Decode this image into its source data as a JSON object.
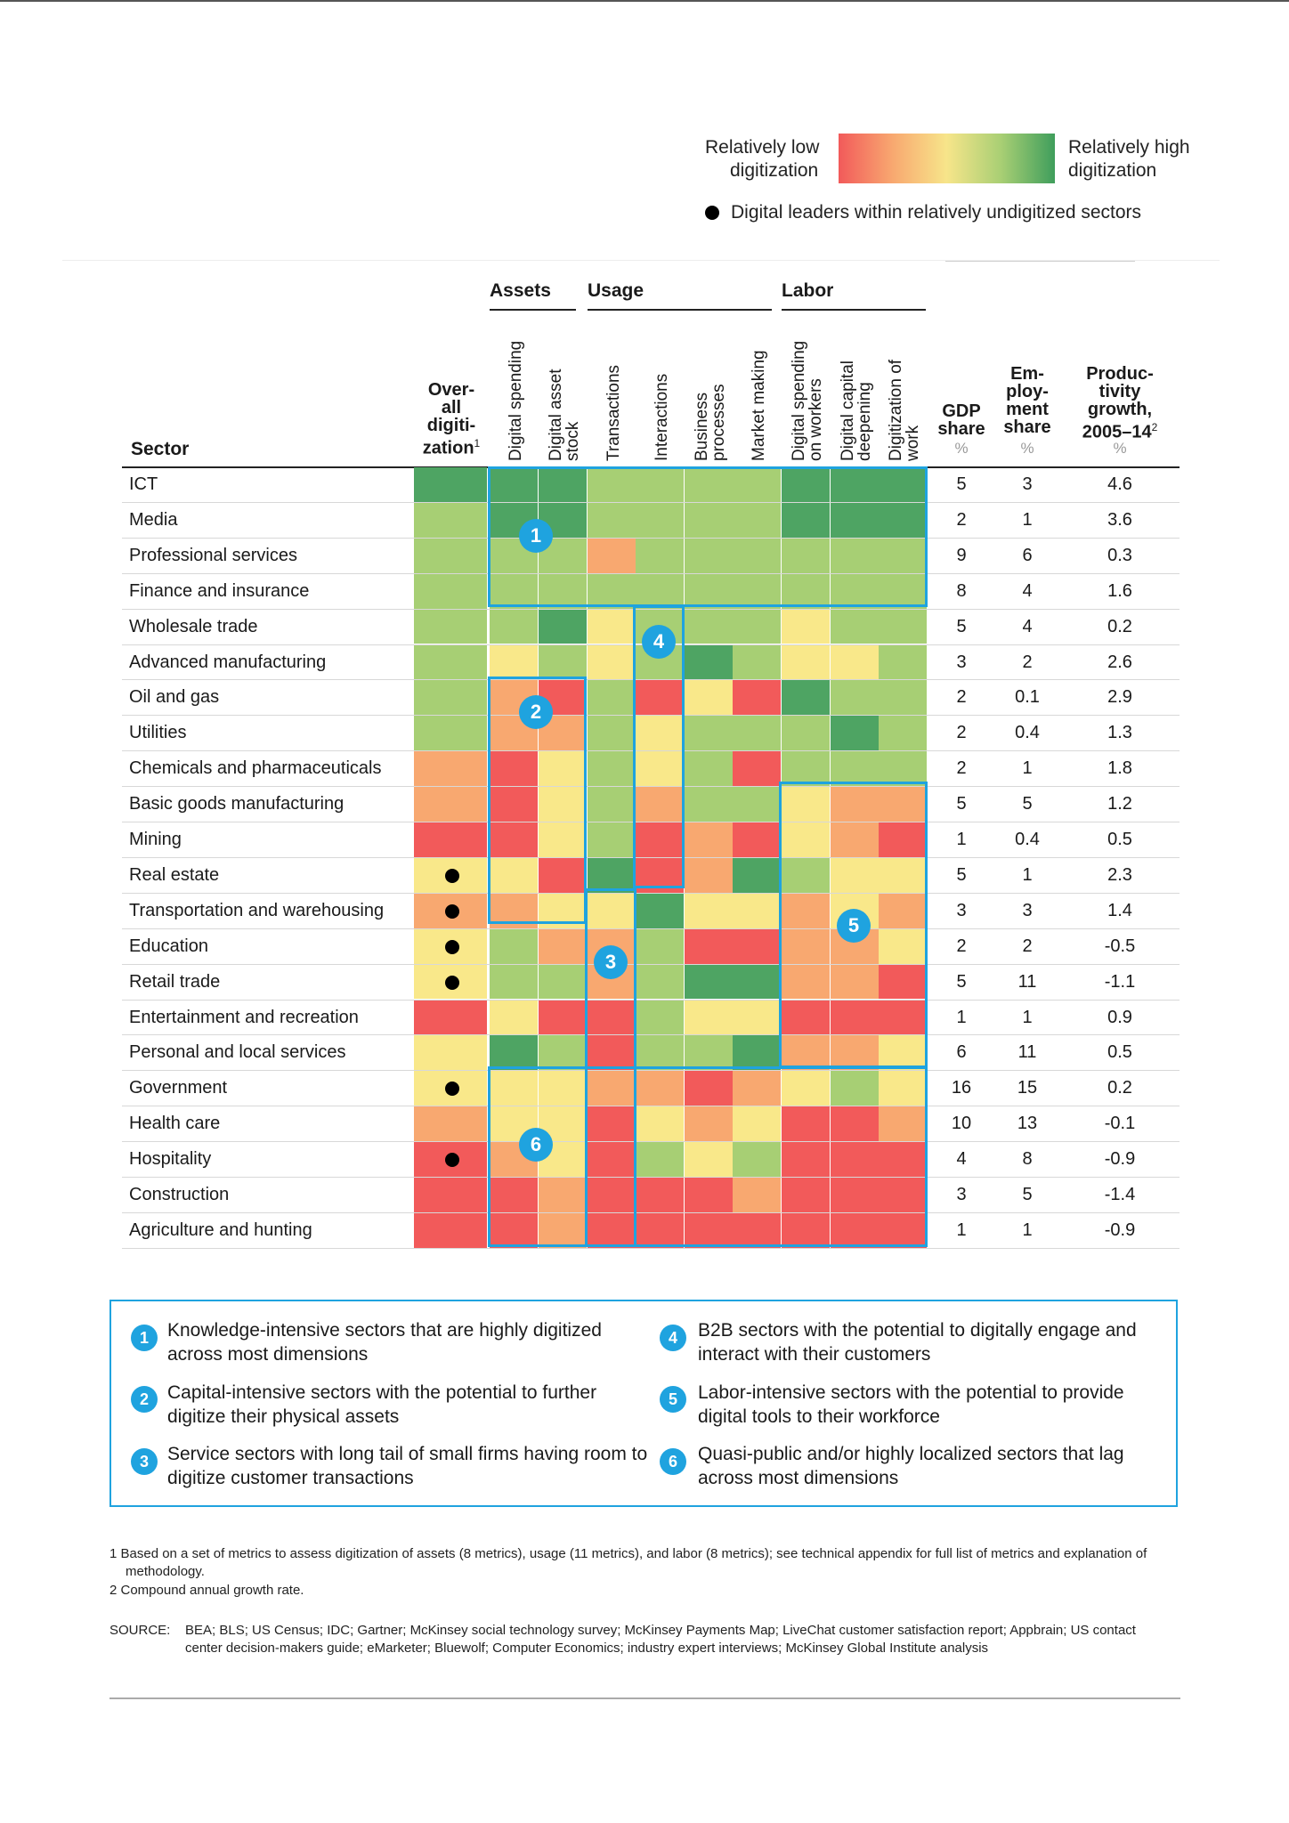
{
  "legend": {
    "low_label_1": "Relatively low",
    "low_label_2": "digitization",
    "high_label_1": "Relatively high",
    "high_label_2": "digitization",
    "dot_label": "Digital leaders within relatively undigitized sectors"
  },
  "headers": {
    "sector": "Sector",
    "overall": [
      "Over-",
      "all",
      "digiti-",
      "zation"
    ],
    "overall_sup": "1",
    "groups": [
      "Assets",
      "Usage",
      "Labor"
    ],
    "columns": [
      "Digital spending",
      "Digital asset\nstock",
      "Transactions",
      "Interactions",
      "Business\nprocesses",
      "Market making",
      "Digital spending\non workers",
      "Digital capital\ndeepening",
      "Digitization of\nwork"
    ],
    "gdp": [
      "GDP",
      "share"
    ],
    "emp": [
      "Em-",
      "ploy-",
      "ment",
      "share"
    ],
    "prod": [
      "Produc-",
      "tivity",
      "growth,",
      "2005–14"
    ],
    "prod_sup": "2",
    "pct": "%"
  },
  "chart_data": {
    "type": "heatmap",
    "scale": "1 = relatively low digitization (red) … 5 = relatively high digitization (green)",
    "rows": [
      {
        "sector": "ICT",
        "overall": 5,
        "leader": false,
        "cells": [
          5,
          5,
          4,
          4,
          4,
          4,
          5,
          5,
          5
        ],
        "gdp": "5",
        "emp": "3",
        "prod": "4.6"
      },
      {
        "sector": "Media",
        "overall": 4,
        "leader": false,
        "cells": [
          5,
          5,
          4,
          4,
          4,
          4,
          5,
          5,
          5
        ],
        "gdp": "2",
        "emp": "1",
        "prod": "3.6"
      },
      {
        "sector": "Professional services",
        "overall": 4,
        "leader": false,
        "cells": [
          4,
          4,
          2,
          4,
          4,
          4,
          4,
          4,
          4
        ],
        "gdp": "9",
        "emp": "6",
        "prod": "0.3"
      },
      {
        "sector": "Finance and insurance",
        "overall": 4,
        "leader": false,
        "cells": [
          4,
          4,
          4,
          4,
          4,
          4,
          4,
          4,
          4
        ],
        "gdp": "8",
        "emp": "4",
        "prod": "1.6"
      },
      {
        "sector": "Wholesale trade",
        "overall": 4,
        "leader": false,
        "cells": [
          4,
          5,
          3,
          4,
          4,
          4,
          3,
          4,
          4
        ],
        "gdp": "5",
        "emp": "4",
        "prod": "0.2"
      },
      {
        "sector": "Advanced manufacturing",
        "overall": 4,
        "leader": false,
        "cells": [
          3,
          4,
          3,
          4,
          5,
          4,
          3,
          3,
          4
        ],
        "gdp": "3",
        "emp": "2",
        "prod": "2.6"
      },
      {
        "sector": "Oil and gas",
        "overall": 4,
        "leader": false,
        "cells": [
          2,
          1,
          4,
          1,
          3,
          1,
          5,
          4,
          4
        ],
        "gdp": "2",
        "emp": "0.1",
        "prod": "2.9"
      },
      {
        "sector": "Utilities",
        "overall": 4,
        "leader": false,
        "cells": [
          2,
          2,
          4,
          3,
          4,
          4,
          4,
          5,
          4
        ],
        "gdp": "2",
        "emp": "0.4",
        "prod": "1.3"
      },
      {
        "sector": "Chemicals and pharmaceuticals",
        "overall": 2,
        "leader": false,
        "cells": [
          1,
          3,
          4,
          3,
          4,
          1,
          4,
          4,
          4
        ],
        "gdp": "2",
        "emp": "1",
        "prod": "1.8"
      },
      {
        "sector": "Basic goods manufacturing",
        "overall": 2,
        "leader": false,
        "cells": [
          1,
          3,
          4,
          2,
          4,
          4,
          3,
          2,
          2
        ],
        "gdp": "5",
        "emp": "5",
        "prod": "1.2"
      },
      {
        "sector": "Mining",
        "overall": 1,
        "leader": false,
        "cells": [
          1,
          3,
          4,
          1,
          2,
          1,
          3,
          2,
          1
        ],
        "gdp": "1",
        "emp": "0.4",
        "prod": "0.5"
      },
      {
        "sector": "Real estate",
        "overall": 3,
        "leader": true,
        "cells": [
          3,
          1,
          5,
          1,
          2,
          5,
          4,
          3,
          3
        ],
        "gdp": "5",
        "emp": "1",
        "prod": "2.3"
      },
      {
        "sector": "Transportation and warehousing",
        "overall": 2,
        "leader": true,
        "cells": [
          2,
          3,
          3,
          5,
          3,
          3,
          2,
          3,
          2
        ],
        "gdp": "3",
        "emp": "3",
        "prod": "1.4"
      },
      {
        "sector": "Education",
        "overall": 3,
        "leader": true,
        "cells": [
          4,
          2,
          2,
          4,
          1,
          1,
          2,
          2,
          3
        ],
        "gdp": "2",
        "emp": "2",
        "prod": "-0.5"
      },
      {
        "sector": "Retail trade",
        "overall": 3,
        "leader": true,
        "cells": [
          4,
          4,
          2,
          4,
          5,
          5,
          2,
          2,
          1
        ],
        "gdp": "5",
        "emp": "11",
        "prod": "-1.1"
      },
      {
        "sector": "Entertainment and recreation",
        "overall": 1,
        "leader": false,
        "cells": [
          3,
          1,
          1,
          4,
          3,
          3,
          1,
          1,
          1
        ],
        "gdp": "1",
        "emp": "1",
        "prod": "0.9"
      },
      {
        "sector": "Personal and local services",
        "overall": 3,
        "leader": false,
        "cells": [
          5,
          4,
          1,
          4,
          4,
          5,
          2,
          2,
          3
        ],
        "gdp": "6",
        "emp": "11",
        "prod": "0.5"
      },
      {
        "sector": "Government",
        "overall": 3,
        "leader": true,
        "cells": [
          3,
          3,
          2,
          2,
          1,
          2,
          3,
          4,
          3
        ],
        "gdp": "16",
        "emp": "15",
        "prod": "0.2"
      },
      {
        "sector": "Health care",
        "overall": 2,
        "leader": false,
        "cells": [
          3,
          3,
          1,
          3,
          2,
          3,
          1,
          1,
          2
        ],
        "gdp": "10",
        "emp": "13",
        "prod": "-0.1"
      },
      {
        "sector": "Hospitality",
        "overall": 1,
        "leader": true,
        "cells": [
          2,
          3,
          1,
          4,
          3,
          4,
          1,
          1,
          1
        ],
        "gdp": "4",
        "emp": "8",
        "prod": "-0.9"
      },
      {
        "sector": "Construction",
        "overall": 1,
        "leader": false,
        "cells": [
          1,
          2,
          1,
          1,
          1,
          2,
          1,
          1,
          1
        ],
        "gdp": "3",
        "emp": "5",
        "prod": "-1.4"
      },
      {
        "sector": "Agriculture and hunting",
        "overall": 1,
        "leader": false,
        "cells": [
          1,
          2,
          1,
          1,
          1,
          1,
          1,
          1,
          1
        ],
        "gdp": "1",
        "emp": "1",
        "prod": "-0.9"
      }
    ],
    "groups": [
      {
        "id": "1",
        "text": "Knowledge-intensive sectors that are highly digitized across most dimensions"
      },
      {
        "id": "2",
        "text": "Capital-intensive sectors with the potential to further digitize their physical assets"
      },
      {
        "id": "3",
        "text": "Service sectors with long tail of small firms having room to digitize customer transactions"
      },
      {
        "id": "4",
        "text": "B2B sectors with the potential to digitally engage and interact with their customers"
      },
      {
        "id": "5",
        "text": "Labor-intensive sectors with the potential to provide digital tools to their workforce"
      },
      {
        "id": "6",
        "text": "Quasi-public and/or highly localized sectors that lag across most dimensions"
      }
    ]
  },
  "colors": {
    "1": "#f25a5a",
    "2": "#f8a870",
    "3": "#f9e88a",
    "4": "#a7cf74",
    "5": "#4ea463",
    "box": "#1fa3df"
  },
  "footnotes": {
    "f1": "1  Based on a set of metrics to assess digitization of assets (8 metrics), usage (11 metrics), and labor (8 metrics); see technical appendix for full list of metrics and explanation of methodology.",
    "f2": "2  Compound annual growth rate.",
    "source_label": "SOURCE:",
    "source": "BEA; BLS; US Census; IDC; Gartner; McKinsey social technology survey; McKinsey Payments Map; LiveChat customer satisfaction report; Appbrain; US contact center decision-makers guide; eMarketer; Bluewolf; Computer Economics; industry expert interviews; McKinsey Global Institute analysis"
  }
}
